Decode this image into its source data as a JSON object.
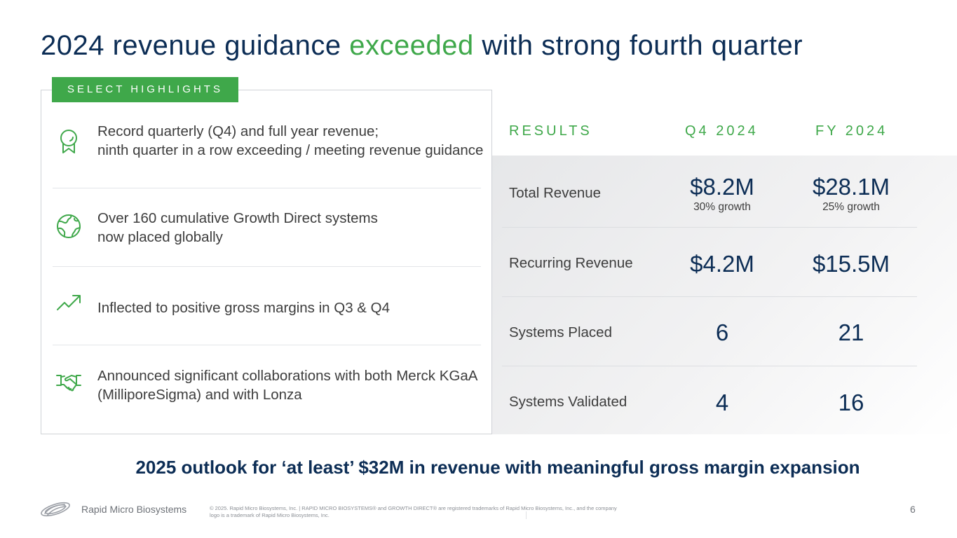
{
  "slide": {
    "title_part1": "2024 revenue guidance ",
    "title_accent": "exceeded",
    "title_part2": " with strong fourth quarter",
    "page_number": "6"
  },
  "colors": {
    "navy": "#0c2d55",
    "green": "#3fa84a",
    "body_text": "#3d3d3d",
    "border": "#cfd2d6"
  },
  "highlights": {
    "tag": "SELECT HIGHLIGHTS",
    "items": [
      {
        "icon": "award-ribbon-icon",
        "text": "Record quarterly (Q4) and full year revenue;\nninth quarter in a row exceeding / meeting revenue guidance"
      },
      {
        "icon": "globe-icon",
        "text": "Over 160 cumulative Growth Direct systems\nnow placed globally"
      },
      {
        "icon": "trending-up-icon",
        "text": "Inflected to positive gross margins in Q3 & Q4"
      },
      {
        "icon": "handshake-icon",
        "text": "Announced significant collaborations with both Merck KGaA (MilliporeSigma) and with Lonza"
      }
    ]
  },
  "results": {
    "headers": {
      "label": "RESULTS",
      "q4": "Q4 2024",
      "fy": "FY 2024"
    },
    "rows": [
      {
        "label": "Total Revenue",
        "q4": "$8.2M",
        "q4_sub": "30% growth",
        "fy": "$28.1M",
        "fy_sub": "25% growth"
      },
      {
        "label": "Recurring Revenue",
        "q4": "$4.2M",
        "fy": "$15.5M"
      },
      {
        "label": "Systems Placed",
        "q4": "6",
        "fy": "21"
      },
      {
        "label": "Systems Validated",
        "q4": "4",
        "fy": "16"
      }
    ]
  },
  "outlook": "2025 outlook for ‘at least’ $32M in revenue with meaningful gross margin expansion",
  "footer": {
    "company": "Rapid Micro Biosystems",
    "legal": "© 2025. Rapid Micro Biosystems, Inc. | RAPID MICRO BIOSYSTEMS® and GROWTH DIRECT® are registered trademarks of Rapid Micro Biosystems, Inc., and the company logo is a trademark of Rapid Micro Biosystems, Inc."
  }
}
